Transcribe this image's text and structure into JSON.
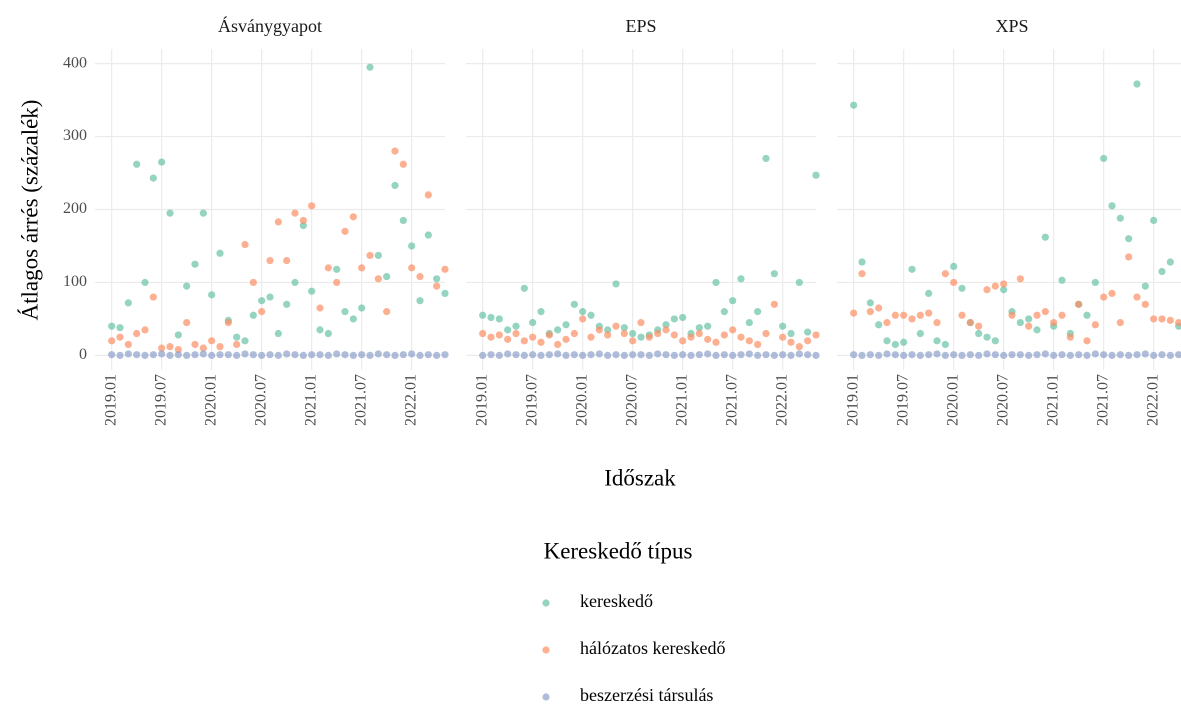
{
  "y_label": "Átlagos árrés (százalék)",
  "x_label": "Időszak",
  "legend_title": "Kereskedő típus",
  "chart_data": [
    {
      "type": "scatter",
      "title": "Ásványgyapot",
      "x": [
        "2019.01",
        "2019.02",
        "2019.03",
        "2019.04",
        "2019.05",
        "2019.06",
        "2019.07",
        "2019.08",
        "2019.09",
        "2019.10",
        "2019.11",
        "2019.12",
        "2020.01",
        "2020.02",
        "2020.03",
        "2020.04",
        "2020.05",
        "2020.06",
        "2020.07",
        "2020.08",
        "2020.09",
        "2020.10",
        "2020.11",
        "2020.12",
        "2021.01",
        "2021.02",
        "2021.03",
        "2021.04",
        "2021.05",
        "2021.06",
        "2021.07",
        "2021.08",
        "2021.09",
        "2021.10",
        "2021.11",
        "2021.12",
        "2022.01",
        "2022.02",
        "2022.03",
        "2022.04",
        "2022.05"
      ],
      "xlim": [
        "2018.11",
        "2022.05"
      ],
      "xticks": [
        "2019.01",
        "2019.07",
        "2020.01",
        "2020.07",
        "2021.01",
        "2021.07",
        "2022.01"
      ],
      "ylim": [
        -20,
        420
      ],
      "yticks": [
        0,
        100,
        200,
        300,
        400
      ],
      "grid": true,
      "series": [
        {
          "name": "kereskedő",
          "color": "#66c2a5",
          "values": [
            40,
            38,
            72,
            262,
            100,
            243,
            265,
            195,
            28,
            95,
            125,
            195,
            83,
            140,
            48,
            25,
            20,
            55,
            75,
            80,
            30,
            70,
            100,
            178,
            88,
            35,
            30,
            118,
            60,
            50,
            65,
            395,
            137,
            108,
            233,
            185,
            150,
            75,
            165,
            105,
            85
          ]
        },
        {
          "name": "hálózatos kereskedő",
          "color": "#fc8d62",
          "values": [
            20,
            25,
            15,
            30,
            35,
            80,
            10,
            12,
            8,
            45,
            15,
            10,
            20,
            12,
            45,
            15,
            152,
            100,
            60,
            130,
            183,
            130,
            195,
            185,
            205,
            65,
            120,
            100,
            170,
            190,
            120,
            137,
            105,
            60,
            280,
            262,
            120,
            108,
            220,
            95,
            118
          ]
        },
        {
          "name": "beszerzési társulás",
          "color": "#8da0cb",
          "values": [
            1,
            0,
            2,
            1,
            0,
            1,
            2,
            0,
            1,
            0,
            1,
            2,
            0,
            1,
            1,
            0,
            2,
            1,
            0,
            1,
            0,
            2,
            1,
            0,
            1,
            1,
            0,
            2,
            1,
            0,
            1,
            0,
            2,
            1,
            0,
            1,
            2,
            0,
            1,
            0,
            1
          ]
        }
      ]
    },
    {
      "type": "scatter",
      "title": "EPS",
      "x": [
        "2019.01",
        "2019.02",
        "2019.03",
        "2019.04",
        "2019.05",
        "2019.06",
        "2019.07",
        "2019.08",
        "2019.09",
        "2019.10",
        "2019.11",
        "2019.12",
        "2020.01",
        "2020.02",
        "2020.03",
        "2020.04",
        "2020.05",
        "2020.06",
        "2020.07",
        "2020.08",
        "2020.09",
        "2020.10",
        "2020.11",
        "2020.12",
        "2021.01",
        "2021.02",
        "2021.03",
        "2021.04",
        "2021.05",
        "2021.06",
        "2021.07",
        "2021.08",
        "2021.09",
        "2021.10",
        "2021.11",
        "2021.12",
        "2022.01",
        "2022.02",
        "2022.03",
        "2022.04",
        "2022.05"
      ],
      "xlim": [
        "2018.11",
        "2022.05"
      ],
      "xticks": [
        "2019.01",
        "2019.07",
        "2020.01",
        "2020.07",
        "2021.01",
        "2021.07",
        "2022.01"
      ],
      "ylim": [
        -20,
        420
      ],
      "yticks": [
        0,
        100,
        200,
        300,
        400
      ],
      "grid": true,
      "series": [
        {
          "name": "kereskedő",
          "color": "#66c2a5",
          "values": [
            55,
            52,
            50,
            35,
            40,
            92,
            45,
            60,
            30,
            35,
            42,
            70,
            60,
            55,
            40,
            35,
            98,
            38,
            30,
            25,
            28,
            35,
            42,
            50,
            52,
            30,
            38,
            40,
            100,
            60,
            75,
            105,
            45,
            60,
            270,
            112,
            40,
            30,
            100,
            32,
            247
          ]
        },
        {
          "name": "hálózatos kereskedő",
          "color": "#fc8d62",
          "values": [
            30,
            25,
            28,
            22,
            30,
            20,
            25,
            18,
            28,
            15,
            22,
            30,
            50,
            25,
            35,
            28,
            40,
            30,
            20,
            45,
            25,
            30,
            35,
            28,
            20,
            25,
            30,
            22,
            18,
            28,
            35,
            25,
            20,
            15,
            30,
            70,
            25,
            18,
            12,
            20,
            28
          ]
        },
        {
          "name": "beszerzési társulás",
          "color": "#8da0cb",
          "values": [
            0,
            1,
            0,
            2,
            1,
            0,
            1,
            0,
            1,
            2,
            0,
            1,
            0,
            1,
            2,
            0,
            1,
            0,
            1,
            1,
            0,
            2,
            1,
            0,
            1,
            0,
            1,
            2,
            0,
            1,
            0,
            1,
            2,
            0,
            1,
            0,
            1,
            0,
            2,
            1,
            0
          ]
        }
      ]
    },
    {
      "type": "scatter",
      "title": "XPS",
      "x": [
        "2019.01",
        "2019.02",
        "2019.03",
        "2019.04",
        "2019.05",
        "2019.06",
        "2019.07",
        "2019.08",
        "2019.09",
        "2019.10",
        "2019.11",
        "2019.12",
        "2020.01",
        "2020.02",
        "2020.03",
        "2020.04",
        "2020.05",
        "2020.06",
        "2020.07",
        "2020.08",
        "2020.09",
        "2020.10",
        "2020.11",
        "2020.12",
        "2021.01",
        "2021.02",
        "2021.03",
        "2021.04",
        "2021.05",
        "2021.06",
        "2021.07",
        "2021.08",
        "2021.09",
        "2021.10",
        "2021.11",
        "2021.12",
        "2022.01",
        "2022.02",
        "2022.03",
        "2022.04",
        "2022.05"
      ],
      "xlim": [
        "2018.11",
        "2022.05"
      ],
      "xticks": [
        "2019.01",
        "2019.07",
        "2020.01",
        "2020.07",
        "2021.01",
        "2021.07",
        "2022.01"
      ],
      "ylim": [
        -20,
        420
      ],
      "yticks": [
        0,
        100,
        200,
        300,
        400
      ],
      "grid": true,
      "series": [
        {
          "name": "kereskedő",
          "color": "#66c2a5",
          "values": [
            343,
            128,
            72,
            42,
            20,
            15,
            18,
            118,
            30,
            85,
            20,
            15,
            122,
            92,
            45,
            30,
            25,
            20,
            90,
            60,
            45,
            50,
            35,
            162,
            40,
            103,
            30,
            70,
            55,
            100,
            270,
            205,
            188,
            160,
            372,
            95,
            185,
            115,
            128,
            40,
            30
          ]
        },
        {
          "name": "hálózatos kereskedő",
          "color": "#fc8d62",
          "values": [
            58,
            112,
            60,
            65,
            45,
            55,
            55,
            50,
            55,
            58,
            45,
            112,
            100,
            55,
            45,
            40,
            90,
            95,
            98,
            55,
            105,
            40,
            55,
            60,
            45,
            55,
            25,
            70,
            20,
            42,
            80,
            85,
            45,
            135,
            80,
            70,
            50,
            50,
            48,
            45,
            45
          ]
        },
        {
          "name": "beszerzési társulás",
          "color": "#8da0cb",
          "values": [
            1,
            0,
            1,
            0,
            2,
            1,
            0,
            1,
            0,
            1,
            2,
            0,
            1,
            0,
            1,
            0,
            2,
            1,
            0,
            1,
            1,
            0,
            1,
            2,
            0,
            1,
            0,
            1,
            0,
            2,
            1,
            0,
            1,
            0,
            1,
            2,
            0,
            1,
            0,
            1,
            0
          ]
        }
      ]
    }
  ]
}
